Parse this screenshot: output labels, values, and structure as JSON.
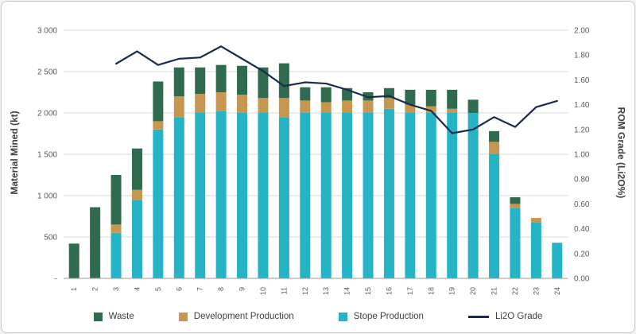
{
  "chart_data": {
    "type": "bar",
    "stacked": true,
    "title": "",
    "categories": [
      "1",
      "2",
      "3",
      "4",
      "5",
      "6",
      "7",
      "8",
      "9",
      "10",
      "11",
      "12",
      "13",
      "14",
      "15",
      "16",
      "17",
      "18",
      "19",
      "20",
      "21",
      "22",
      "23",
      "24"
    ],
    "series": [
      {
        "name": "Waste",
        "color": "#2E6B4F",
        "values": [
          420,
          860,
          600,
          500,
          480,
          350,
          320,
          330,
          350,
          370,
          420,
          160,
          180,
          150,
          100,
          120,
          180,
          200,
          230,
          160,
          130,
          80,
          0,
          0
        ]
      },
      {
        "name": "Development Production",
        "color": "#C8974F",
        "values": [
          0,
          0,
          100,
          120,
          100,
          250,
          230,
          230,
          220,
          180,
          230,
          150,
          130,
          150,
          150,
          130,
          100,
          80,
          50,
          0,
          150,
          50,
          50,
          0
        ]
      },
      {
        "name": "Stope Production",
        "color": "#25B4C6",
        "values": [
          0,
          0,
          550,
          950,
          1800,
          1950,
          2000,
          2020,
          2000,
          2000,
          1950,
          2000,
          2000,
          2000,
          2000,
          2050,
          2000,
          2000,
          2000,
          2000,
          1500,
          850,
          680,
          430
        ]
      }
    ],
    "stack_order_bottom_to_top": [
      2,
      1,
      0
    ],
    "line_series": {
      "name": "Li2O Grade",
      "color": "#1B2A4D",
      "axis": "right",
      "values": [
        null,
        null,
        1.73,
        1.83,
        1.72,
        1.77,
        1.78,
        1.87,
        1.77,
        1.67,
        1.55,
        1.58,
        1.57,
        1.52,
        1.46,
        1.47,
        1.4,
        1.35,
        1.17,
        1.2,
        1.3,
        1.22,
        1.38,
        1.43
      ]
    },
    "ylabel_left": "Material Mined (kt)",
    "ylabel_right": "ROM Grade (Li2O%)",
    "ylim_left": [
      0,
      3000
    ],
    "ylim_right": [
      0,
      2
    ],
    "left_tick_labels": [
      "-",
      "500",
      "1 000",
      "1 500",
      "2 000",
      "2 500",
      "3 000"
    ],
    "right_tick_labels": [
      "0.00",
      "0.20",
      "0.40",
      "0.60",
      "0.80",
      "1.00",
      "1.20",
      "1.40",
      "1.60",
      "1.80",
      "2.00"
    ],
    "grid": true,
    "legend_position": "bottom",
    "colors": {
      "grid": "#d9d9d9",
      "axis_line": "#9b9b9b",
      "tick_text": "#595959",
      "border": "#c8c8c8"
    }
  }
}
